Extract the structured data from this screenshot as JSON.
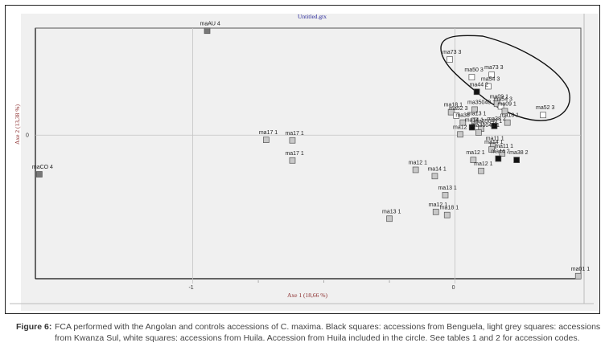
{
  "figure": {
    "label": "Figure 6:",
    "caption": "FCA performed with the Angolan and controls accessions of C. maxima. Black squares: accessions from Benguela, light grey squares: accessions from Kwanza Sul, white squares: accessions from Huila. Accession from Huila included in the circle. See tables 1 and 2 for accession codes."
  },
  "colors": {
    "benguela": "#111111",
    "kwanza_sul": "#c8c8c8",
    "huila": "#ffffff",
    "control": "#777777",
    "axis_label": "#8b2d2d",
    "title": "#2c2c9c",
    "panel_bg": "#f0f0f0"
  },
  "chart_data": {
    "type": "scatter",
    "title": "Untitled.gtx",
    "xlabel": "Axe 1 (18,66 %)",
    "ylabel": "Axe 2 (13,38 %)",
    "xlim": [
      -1.6,
      0.48
    ],
    "ylim": [
      -0.55,
      0.41
    ],
    "x_ticks": [
      {
        "value": -1,
        "label": "-1"
      },
      {
        "value": 0,
        "label": "0"
      }
    ],
    "x_minor_ticks": [
      -0.75,
      -0.5,
      -0.25
    ],
    "y_ticks": [
      {
        "value": 0,
        "label": "0"
      }
    ],
    "grid": "zero-lines",
    "legend": [
      {
        "name": "Benguela",
        "marker": "black square"
      },
      {
        "name": "Kwanza Sul",
        "marker": "light grey square"
      },
      {
        "name": "Huila",
        "marker": "white square"
      },
      {
        "name": "Controls",
        "marker": "dark grey square"
      }
    ],
    "points": [
      {
        "label": "maAU 4",
        "x": -0.945,
        "y": 0.4,
        "group": "control"
      },
      {
        "label": "maCO 4",
        "x": -1.585,
        "y": -0.15,
        "group": "control"
      },
      {
        "label": "ma17 1",
        "x": -0.72,
        "y": -0.018,
        "group": "kwanza_sul"
      },
      {
        "label": "ma17 1",
        "x": -0.62,
        "y": -0.02,
        "group": "kwanza_sul"
      },
      {
        "label": "ma17 1",
        "x": -0.62,
        "y": -0.097,
        "group": "kwanza_sul"
      },
      {
        "label": "ma12 1",
        "x": -0.15,
        "y": -0.133,
        "group": "kwanza_sul"
      },
      {
        "label": "ma14 1",
        "x": -0.077,
        "y": -0.157,
        "group": "kwanza_sul"
      },
      {
        "label": "ma13 1",
        "x": -0.037,
        "y": -0.23,
        "group": "kwanza_sul"
      },
      {
        "label": "ma12 1",
        "x": -0.073,
        "y": -0.294,
        "group": "kwanza_sul"
      },
      {
        "label": "ma18 1",
        "x": -0.03,
        "y": -0.306,
        "group": "kwanza_sul"
      },
      {
        "label": "ma13 1",
        "x": -0.25,
        "y": -0.32,
        "group": "kwanza_sul"
      },
      {
        "label": "ma01 1",
        "x": 0.47,
        "y": -0.54,
        "group": "kwanza_sul"
      },
      {
        "label": "ma73 3",
        "x": -0.02,
        "y": 0.29,
        "group": "huila"
      },
      {
        "label": "ma50 3",
        "x": 0.064,
        "y": 0.222,
        "group": "huila"
      },
      {
        "label": "ma73 3",
        "x": 0.14,
        "y": 0.231,
        "group": "huila"
      },
      {
        "label": "ma54 3",
        "x": 0.127,
        "y": 0.187,
        "group": "huila"
      },
      {
        "label": "ma44 2",
        "x": 0.083,
        "y": 0.166,
        "group": "benguela"
      },
      {
        "label": "ma52 3",
        "x": 0.336,
        "y": 0.077,
        "group": "huila"
      },
      {
        "label": "ma18 1",
        "x": -0.015,
        "y": 0.088,
        "group": "kwanza_sul"
      },
      {
        "label": "ma52 3",
        "x": 0.005,
        "y": 0.075,
        "group": "huila"
      },
      {
        "label": "ma35040 1",
        "x": 0.075,
        "y": 0.098,
        "group": "kwanza_sul"
      },
      {
        "label": "ma09 1",
        "x": 0.16,
        "y": 0.12,
        "group": "kwanza_sul"
      },
      {
        "label": "ma54 3",
        "x": 0.175,
        "y": 0.11,
        "group": "huila"
      },
      {
        "label": "ma09 1",
        "x": 0.19,
        "y": 0.092,
        "group": "kwanza_sul"
      },
      {
        "label": "ma18 1",
        "x": 0.2,
        "y": 0.048,
        "group": "kwanza_sul"
      },
      {
        "label": "ma13 1",
        "x": 0.075,
        "y": 0.055,
        "group": "kwanza_sul"
      },
      {
        "label": "ma38 2",
        "x": 0.15,
        "y": 0.035,
        "group": "benguela"
      },
      {
        "label": "ma38",
        "x": 0.03,
        "y": 0.048,
        "group": "kwanza_sul"
      },
      {
        "label": "ma14 1",
        "x": 0.065,
        "y": 0.03,
        "group": "benguela"
      },
      {
        "label": "ma35040 1",
        "x": 0.1,
        "y": 0.025,
        "group": "kwanza_sul"
      },
      {
        "label": "ma12 1",
        "x": 0.02,
        "y": 0.003,
        "group": "kwanza_sul"
      },
      {
        "label": "ma35040 1",
        "x": 0.09,
        "y": 0.01,
        "group": "kwanza_sul"
      },
      {
        "label": "ma11 1",
        "x": 0.145,
        "y": -0.04,
        "group": "kwanza_sul"
      },
      {
        "label": "ma14 1",
        "x": 0.14,
        "y": -0.055,
        "group": "kwanza_sul"
      },
      {
        "label": "ma11 1",
        "x": 0.18,
        "y": -0.07,
        "group": "kwanza_sul"
      },
      {
        "label": "ma44 2",
        "x": 0.165,
        "y": -0.09,
        "group": "benguela"
      },
      {
        "label": "ma38 2",
        "x": 0.235,
        "y": -0.095,
        "group": "benguela"
      },
      {
        "label": "ma12 1",
        "x": 0.07,
        "y": -0.095,
        "group": "kwanza_sul"
      },
      {
        "label": "ma12 1",
        "x": 0.1,
        "y": -0.137,
        "group": "kwanza_sul"
      }
    ],
    "annotations": [
      {
        "type": "ellipse",
        "description": "Huila accessions circled (top-right cluster)"
      }
    ]
  }
}
